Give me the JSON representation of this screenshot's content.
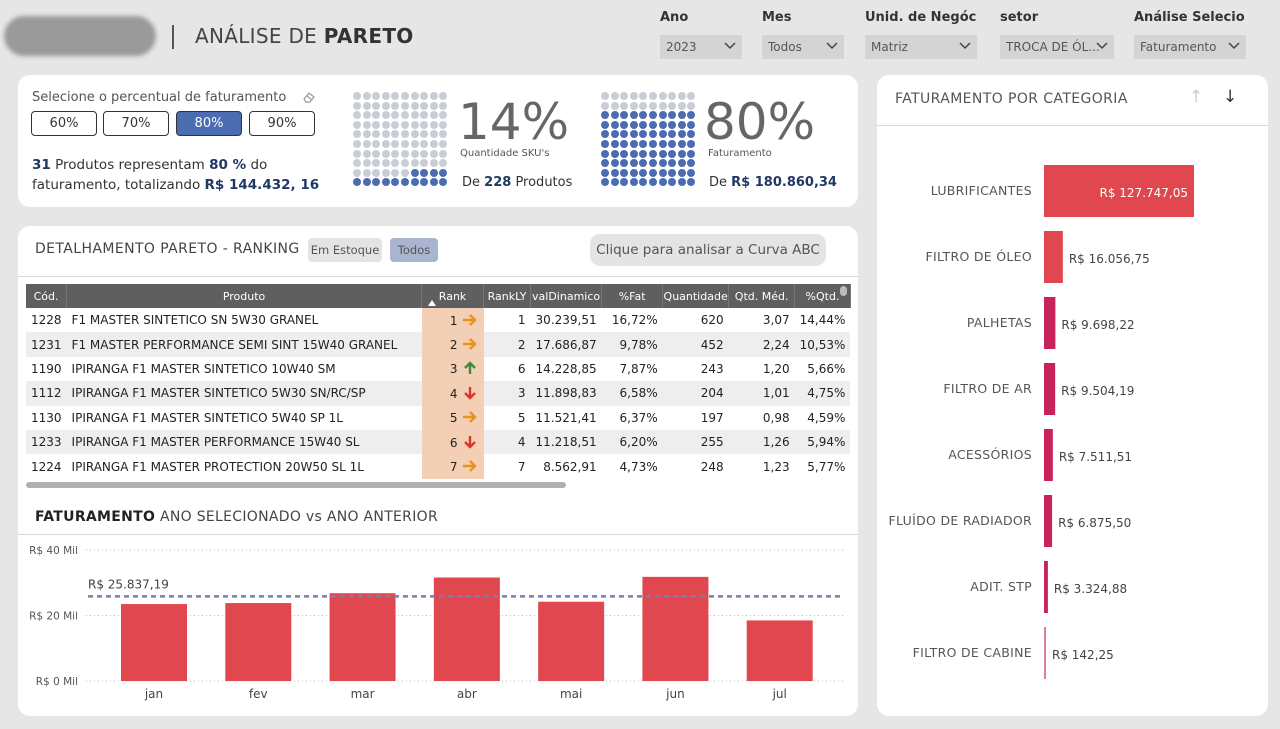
{
  "header": {
    "title_light": "ANÁLISE DE",
    "title_bold": "PARETO"
  },
  "filters": [
    {
      "label": "Ano",
      "value": "2023"
    },
    {
      "label": "Mes",
      "value": "Todos"
    },
    {
      "label": "Unid. de Negóc...",
      "value": "Matriz"
    },
    {
      "label": "setor",
      "value": "TROCA DE ÓL..."
    },
    {
      "label": "Análise Selecio...",
      "value": "Faturamento"
    }
  ],
  "selector": {
    "label": "Selecione o percentual de faturamento",
    "options": [
      "60%",
      "70%",
      "80%",
      "90%"
    ],
    "selected": "80%",
    "summary": {
      "count": "31",
      "text1": "Produtos representam",
      "pct": "80 %",
      "text2": "do",
      "text3": "faturamento, totalizando",
      "total": "R$ 144.432, 16"
    }
  },
  "kpi_sku": {
    "value": "14%",
    "caption": "Quantidade SKU's",
    "de_prefix": "De",
    "de_value": "228",
    "de_suffix": "Produtos",
    "filled_fraction": 0.14
  },
  "kpi_fat": {
    "value": "80%",
    "caption": "Faturamento",
    "de_prefix": "De",
    "de_value": "R$ 180.860,34",
    "filled_fraction": 0.8
  },
  "ranking": {
    "title": "DETALHAMENTO PARETO - RANKING",
    "chip_stock": "Em Estoque",
    "chip_all": "Todos",
    "abc_button": "Clique para analisar a Curva ABC",
    "columns": [
      "Cód.",
      "Produto",
      "Rank",
      "RankLY",
      "valDinamico",
      "%Fat",
      "Quantidade",
      "Qtd. Méd.",
      "%Qtd."
    ],
    "rows": [
      {
        "cod": "1228",
        "produto": "F1 MASTER SINTETICO SN 5W30 GRANEL",
        "rank": "1",
        "trend": "right",
        "rankly": "1",
        "val": "30.239,51",
        "fat": "16,72%",
        "qtd": "620",
        "med": "3,07",
        "pq": "14,44%"
      },
      {
        "cod": "1231",
        "produto": "F1 MASTER PERFORMANCE SEMI SINT 15W40 GRANEL",
        "rank": "2",
        "trend": "right",
        "rankly": "2",
        "val": "17.686,87",
        "fat": "9,78%",
        "qtd": "452",
        "med": "2,24",
        "pq": "10,53%"
      },
      {
        "cod": "1190",
        "produto": "IPIRANGA F1 MASTER SINTETICO 10W40 SM",
        "rank": "3",
        "trend": "up",
        "rankly": "6",
        "val": "14.228,85",
        "fat": "7,87%",
        "qtd": "243",
        "med": "1,20",
        "pq": "5,66%"
      },
      {
        "cod": "1112",
        "produto": "IPIRANGA F1 MASTER SINTETICO 5W30 SN/RC/SP",
        "rank": "4",
        "trend": "down",
        "rankly": "3",
        "val": "11.898,83",
        "fat": "6,58%",
        "qtd": "204",
        "med": "1,01",
        "pq": "4,75%"
      },
      {
        "cod": "1130",
        "produto": "IPIRANGA F1 MASTER SINTETICO 5W40 SP 1L",
        "rank": "5",
        "trend": "right",
        "rankly": "5",
        "val": "11.521,41",
        "fat": "6,37%",
        "qtd": "197",
        "med": "0,98",
        "pq": "4,59%"
      },
      {
        "cod": "1233",
        "produto": "IPIRANGA F1 MASTER PERFORMANCE 15W40 SL",
        "rank": "6",
        "trend": "down",
        "rankly": "4",
        "val": "11.218,51",
        "fat": "6,20%",
        "qtd": "255",
        "med": "1,26",
        "pq": "5,94%"
      },
      {
        "cod": "1224",
        "produto": "IPIRANGA F1 MASTER PROTECTION 20W50 SL 1L",
        "rank": "7",
        "trend": "right",
        "rankly": "7",
        "val": "8.562,91",
        "fat": "4,73%",
        "qtd": "248",
        "med": "1,23",
        "pq": "5,77%"
      }
    ]
  },
  "faturamento": {
    "title_bold": "FATURAMENTO",
    "title_rest": "ANO SELECIONADO vs ANO ANTERIOR"
  },
  "categoria": {
    "title": "FATURAMENTO POR CATEGORIA",
    "sort_up": "↑",
    "sort_down": "↓"
  },
  "colors": {
    "bar_red": "#e0474f",
    "bar_crimson": "#c8245a",
    "waffle_filled": "#4b6cb0",
    "waffle_empty": "#c8cdd6",
    "avg_line": "#7b7fa8",
    "rank_cell": "#f2cfb5",
    "arrow_orange": "#e8921c",
    "arrow_green": "#3c8a3c",
    "arrow_red": "#d9362b"
  },
  "chart_data": [
    {
      "type": "bar",
      "categories": [
        "jan",
        "fev",
        "mar",
        "abr",
        "mai",
        "jun",
        "jul"
      ],
      "values": [
        23.5,
        23.8,
        26.8,
        31.6,
        24.2,
        31.8,
        18.5
      ],
      "yticks": [
        "R$ 0 Mil",
        "R$ 20 Mil",
        "R$ 40 Mil"
      ],
      "ylim": [
        0,
        40
      ],
      "reference_line": {
        "value": 25.84,
        "label": "R$ 25.837,19"
      },
      "grid": "dotted"
    },
    {
      "type": "bar",
      "orientation": "horizontal",
      "categories": [
        "LUBRIFICANTES",
        "FILTRO DE ÓLEO",
        "PALHETAS",
        "FILTRO DE AR",
        "ACESSÓRIOS",
        "FLUÍDO DE RADIADOR",
        "ADIT. STP",
        "FILTRO DE CABINE"
      ],
      "values": [
        127747.05,
        16056.75,
        9698.22,
        9504.19,
        7511.51,
        6875.5,
        3324.88,
        142.25
      ],
      "labels": [
        "R$ 127.747,05",
        "R$ 16.056,75",
        "R$ 9.698,22",
        "R$ 9.504,19",
        "R$ 7.511,51",
        "R$ 6.875,50",
        "R$ 3.324,88",
        "R$ 142,25"
      ]
    }
  ]
}
